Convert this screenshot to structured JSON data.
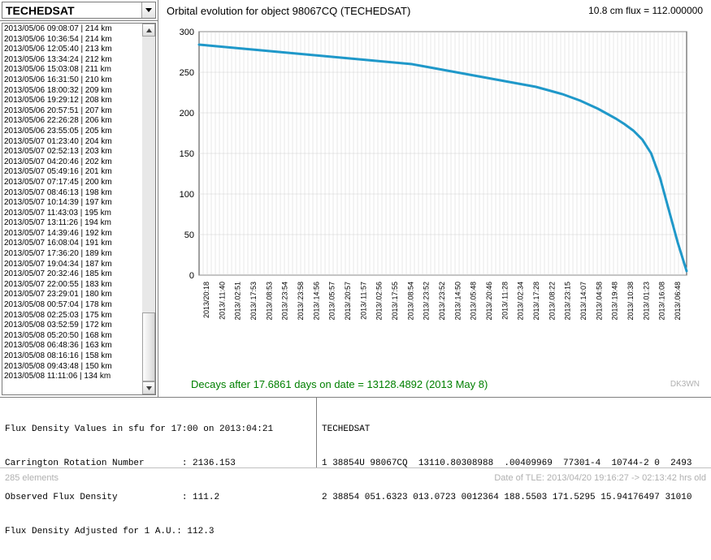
{
  "dropdown": {
    "selected": "TECHEDSAT"
  },
  "list_items": [
    "2013/05/06  09:08:07 | 214 km",
    "2013/05/06  10:36:54 | 214 km",
    "2013/05/06  12:05:40 | 213 km",
    "2013/05/06  13:34:24 | 212 km",
    "2013/05/06  15:03:08 | 211 km",
    "2013/05/06  16:31:50 | 210 km",
    "2013/05/06  18:00:32 | 209 km",
    "2013/05/06  19:29:12 | 208 km",
    "2013/05/06  20:57:51 | 207 km",
    "2013/05/06  22:26:28 | 206 km",
    "2013/05/06  23:55:05 | 205 km",
    "2013/05/07  01:23:40 | 204 km",
    "2013/05/07  02:52:13 | 203 km",
    "2013/05/07  04:20:46 | 202 km",
    "2013/05/07  05:49:16 | 201 km",
    "2013/05/07  07:17:45 | 200 km",
    "2013/05/07  08:46:13 | 198 km",
    "2013/05/07  10:14:39 | 197 km",
    "2013/05/07  11:43:03 | 195 km",
    "2013/05/07  13:11:26 | 194 km",
    "2013/05/07  14:39:46 | 192 km",
    "2013/05/07  16:08:04 | 191 km",
    "2013/05/07  17:36:20 | 189 km",
    "2013/05/07  19:04:34 | 187 km",
    "2013/05/07  20:32:46 | 185 km",
    "2013/05/07  22:00:55 | 183 km",
    "2013/05/07  23:29:01 | 180 km",
    "2013/05/08  00:57:04 | 178 km",
    "2013/05/08  02:25:03 | 175 km",
    "2013/05/08  03:52:59 | 172 km",
    "2013/05/08  05:20:50 | 168 km",
    "2013/05/08  06:48:36 | 163 km",
    "2013/05/08  08:16:16 | 158 km",
    "2013/05/08  09:43:48 | 150 km",
    "2013/05/08  11:11:06 | 134 km"
  ],
  "chart": {
    "type": "line",
    "title": "Orbital evolution for object 98067CQ  (TECHEDSAT)",
    "flux_label": "10.8 cm flux = 112.000000",
    "ylim": [
      0,
      300
    ],
    "yticks": [
      0,
      50,
      100,
      150,
      200,
      250,
      300
    ],
    "ytick_fontsize": 11,
    "xtick_fontsize": 9,
    "line_color": "#1f98c9",
    "line_width": 3,
    "grid_color": "#d0d0d0",
    "background_color": "#ffffff",
    "axis_color": "#404040",
    "x_labels": [
      "2013/20:18",
      "2013/.11:40",
      "2013/.02:51",
      "2013/.17:53",
      "2013/.08:53",
      "2013/.23:54",
      "2013/.23:58",
      "2013/.14:56",
      "2013/.05:57",
      "2013/.20:57",
      "2013/.11:57",
      "2013/.02:56",
      "2013/.17:55",
      "2013/.08:54",
      "2013/.23:52",
      "2013/.23:52",
      "2013/.14:50",
      "2013/.05:48",
      "2013/.20:46",
      "2013/.11:28",
      "2013/.02:34",
      "2013/.17:28",
      "2013/.08:22",
      "2013/.23:15",
      "2013/.14:07",
      "2013/.04:58",
      "2013/.19:48",
      "2013/.10:38",
      "2013/.01:23",
      "2013/.16:08",
      "2013/.06:48"
    ],
    "decay_text": "Decays after   17.6861 days on date = 13128.4892 (2013 May 8)",
    "watermark": "DK3WN",
    "data_y": [
      284,
      283,
      282,
      281,
      280,
      279,
      278,
      277,
      276,
      275,
      274,
      273,
      272,
      271,
      270,
      269,
      268,
      267,
      266,
      265,
      264,
      263,
      262,
      261,
      260,
      258,
      256,
      254,
      252,
      250,
      248,
      246,
      244,
      242,
      240,
      238,
      236,
      234,
      232,
      229,
      226,
      223,
      219,
      215,
      210,
      205,
      199,
      193,
      186,
      178,
      167,
      150,
      120,
      80,
      40,
      5
    ]
  },
  "info_left": {
    "line1": "Flux Density Values in sfu for 17:00 on 2013:04:21",
    "line2": "Carrington Rotation Number       : 2136.153",
    "line3": "Observed Flux Density            : 111.2",
    "line4": "Flux Density Adjusted for 1 A.U.: 112.3"
  },
  "info_right": {
    "line1": "TECHEDSAT",
    "line2": "1 38854U 98067CQ  13110.80308988  .00409969  77301-4  10744-2 0  2493",
    "line3": "2 38854 051.6323 013.0723 0012364 188.5503 171.5295 15.94176497 31010"
  },
  "status": {
    "left": "285 elements",
    "right": "Date of TLE: 2013/04/20 19:16:27  -> 02:13:42 hrs old"
  }
}
